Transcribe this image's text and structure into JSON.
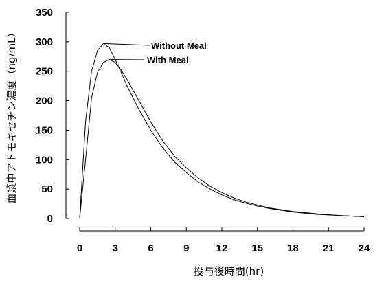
{
  "chart_data": {
    "type": "line",
    "title": "",
    "xlabel": "投与後時間(hr)",
    "ylabel": "血漿中アトモキセチン濃度（ng/mL）",
    "xlim": [
      0,
      24
    ],
    "ylim": [
      0,
      350
    ],
    "x_ticks": [
      0,
      3,
      6,
      9,
      12,
      15,
      18,
      21,
      24
    ],
    "y_ticks": [
      0,
      50,
      100,
      150,
      200,
      250,
      300,
      350
    ],
    "grid": false,
    "x_tick_labels": [
      "0",
      "3",
      "6",
      "9",
      "12",
      "15",
      "18",
      "21",
      "24"
    ],
    "y_tick_labels": [
      "0",
      "50",
      "100",
      "150",
      "200",
      "250",
      "300",
      "350"
    ],
    "series": [
      {
        "name": "Without Meal",
        "x": [
          0,
          0.5,
          1,
          1.5,
          2,
          2.5,
          3,
          3.5,
          4,
          5,
          6,
          7,
          8,
          9,
          10,
          11,
          12,
          13,
          14,
          15,
          16,
          18,
          20,
          22,
          24
        ],
        "y": [
          0,
          165,
          250,
          285,
          297,
          290,
          270,
          248,
          225,
          185,
          150,
          120,
          96,
          78,
          62,
          50,
          40,
          32,
          26,
          21,
          17,
          11,
          7,
          5,
          3
        ]
      },
      {
        "name": "With Meal",
        "x": [
          0,
          0.5,
          1,
          1.5,
          2,
          2.5,
          3,
          3.5,
          4,
          5,
          6,
          7,
          8,
          9,
          10,
          11,
          12,
          13,
          14,
          15,
          16,
          18,
          20,
          22,
          24
        ],
        "y": [
          0,
          100,
          205,
          248,
          265,
          270,
          265,
          252,
          236,
          200,
          164,
          132,
          106,
          86,
          69,
          55,
          44,
          35,
          28,
          23,
          18,
          12,
          8,
          5,
          3
        ]
      }
    ],
    "annotations": [
      {
        "text": "Without Meal",
        "series": "Without Meal",
        "at_x": 2,
        "at_y": 297
      },
      {
        "text": "With Meal",
        "series": "With Meal",
        "at_x": 2.5,
        "at_y": 270
      }
    ]
  }
}
